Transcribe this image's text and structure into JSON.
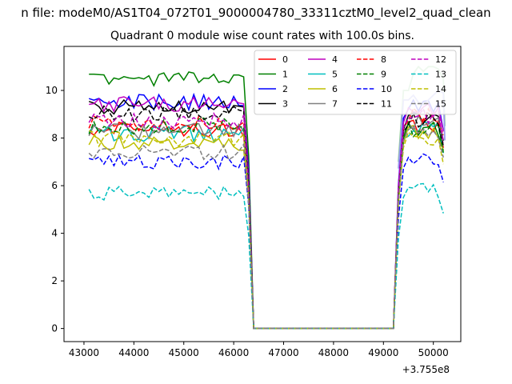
{
  "chart_data": {
    "type": "line",
    "suptitle": "n file: modeM0/AS1T04_072T01_9000004780_33311cztM0_level2_quad_clean",
    "title": "Quadrant 0 module wise count rates with 100.0s bins.",
    "xlabel": "",
    "ylabel": "",
    "offset_text": "+3.755e8",
    "x_offset": 375500000,
    "xlim": [
      42600,
      50550
    ],
    "ylim": [
      -0.55,
      11.85
    ],
    "xticks": [
      43000,
      44000,
      45000,
      46000,
      47000,
      48000,
      49000,
      50000
    ],
    "xtick_labels": [
      "43000",
      "44000",
      "45000",
      "46000",
      "47000",
      "48000",
      "49000",
      "50000"
    ],
    "yticks": [
      0,
      2,
      4,
      6,
      8,
      10
    ],
    "ytick_labels": [
      "0",
      "2",
      "4",
      "6",
      "8",
      "10"
    ],
    "grid": false,
    "legend_position": "top-right",
    "legend_columns": 4,
    "segments": {
      "active1": {
        "start": 43100,
        "end": 46200,
        "step": 100
      },
      "drop_x": [
        46300,
        46400
      ],
      "zero": {
        "start": 46400,
        "end": 49200
      },
      "rise_x": [
        49300,
        49400
      ],
      "active2": {
        "start": 49500,
        "end": 50200,
        "step": 100
      }
    },
    "series": [
      {
        "name": "0",
        "color": "#ff0000",
        "dash": false,
        "level": 8.4,
        "end_level": 8.5,
        "amp": 0.35,
        "seed": 1
      },
      {
        "name": "1",
        "color": "#008000",
        "dash": false,
        "level": 10.5,
        "end_level": 8.4,
        "amp": 0.3,
        "seed": 2
      },
      {
        "name": "2",
        "color": "#0000ff",
        "dash": false,
        "level": 9.5,
        "end_level": 9.3,
        "amp": 0.35,
        "seed": 3
      },
      {
        "name": "3",
        "color": "#000000",
        "dash": false,
        "level": 9.3,
        "end_level": 8.8,
        "amp": 0.3,
        "seed": 4
      },
      {
        "name": "4",
        "color": "#bf00bf",
        "dash": false,
        "level": 9.4,
        "end_level": 9.1,
        "amp": 0.35,
        "seed": 5
      },
      {
        "name": "5",
        "color": "#00bfbf",
        "dash": false,
        "level": 8.2,
        "end_level": 8.4,
        "amp": 0.35,
        "seed": 6
      },
      {
        "name": "6",
        "color": "#bfbf00",
        "dash": false,
        "level": 7.8,
        "end_level": 8.2,
        "amp": 0.35,
        "seed": 7
      },
      {
        "name": "7",
        "color": "#808080",
        "dash": false,
        "level": 8.3,
        "end_level": 8.6,
        "amp": 0.35,
        "seed": 8
      },
      {
        "name": "8",
        "color": "#ff0000",
        "dash": true,
        "level": 8.6,
        "end_level": 8.9,
        "amp": 0.35,
        "seed": 9
      },
      {
        "name": "9",
        "color": "#008000",
        "dash": true,
        "level": 8.5,
        "end_level": 8.4,
        "amp": 0.35,
        "seed": 10
      },
      {
        "name": "10",
        "color": "#0000ff",
        "dash": true,
        "level": 7.0,
        "end_level": 7.1,
        "amp": 0.3,
        "seed": 11
      },
      {
        "name": "11",
        "color": "#000000",
        "dash": true,
        "level": 9.0,
        "end_level": 8.7,
        "amp": 0.35,
        "seed": 12
      },
      {
        "name": "12",
        "color": "#bf00bf",
        "dash": true,
        "level": 8.7,
        "end_level": 8.9,
        "amp": 0.35,
        "seed": 13
      },
      {
        "name": "13",
        "color": "#00bfbf",
        "dash": true,
        "level": 5.7,
        "end_level": 5.8,
        "amp": 0.3,
        "seed": 14
      },
      {
        "name": "14",
        "color": "#bfbf00",
        "dash": true,
        "level": 8.0,
        "end_level": 8.0,
        "amp": 0.35,
        "seed": 15
      },
      {
        "name": "15",
        "color": "#808080",
        "dash": true,
        "level": 7.4,
        "end_level": 8.3,
        "amp": 0.35,
        "seed": 16
      }
    ],
    "extra_lines": [
      {
        "color": "#8fd18f",
        "values": [
          10.0,
          10.7,
          11.0,
          10.8,
          11.0,
          11.0,
          10.9,
          10.5
        ],
        "start": 49500
      },
      {
        "color": "#9999ee",
        "values": [
          9.6,
          9.8,
          9.5,
          9.4,
          9.6,
          9.8,
          10.0,
          9.9
        ],
        "start": 49500
      }
    ]
  }
}
